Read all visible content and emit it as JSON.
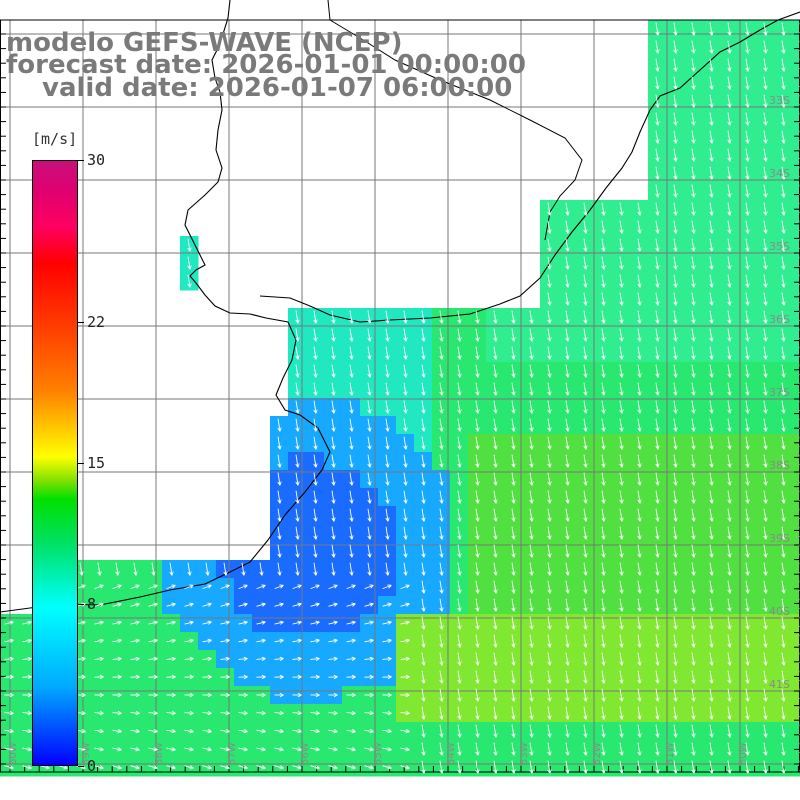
{
  "title": {
    "line1": "modelo GEFS-WAVE (NCEP)",
    "line2": "forecast date: 2026-01-01 00:00:00",
    "line3": "valid date: 2026-01-07 06:00:00"
  },
  "colorbar": {
    "unit": "[m/s]",
    "min": 0,
    "max": 30,
    "ticks": [
      {
        "value": 30,
        "label": "30"
      },
      {
        "value": 22,
        "label": "22"
      },
      {
        "value": 15,
        "label": "15"
      },
      {
        "value": 8,
        "label": "8"
      },
      {
        "value": 0,
        "label": "0"
      }
    ],
    "colors": [
      "#0000ff",
      "#00aaff",
      "#00ffff",
      "#00e000",
      "#ffff00",
      "#ff8000",
      "#ff0000",
      "#c8107a"
    ]
  },
  "lat_labels": [
    "33S",
    "34S",
    "35S",
    "36S",
    "37S",
    "38S",
    "39S",
    "40S",
    "41S"
  ],
  "lon_labels": [
    "60W",
    "59W",
    "58W",
    "57W",
    "56W",
    "55W",
    "54W",
    "53W",
    "52W",
    "51W",
    "50W"
  ],
  "map": {
    "background_color": "#ffffff",
    "grid_color": "#777777",
    "coastline_color": "#000000",
    "arrow_color": "#ffffff"
  }
}
